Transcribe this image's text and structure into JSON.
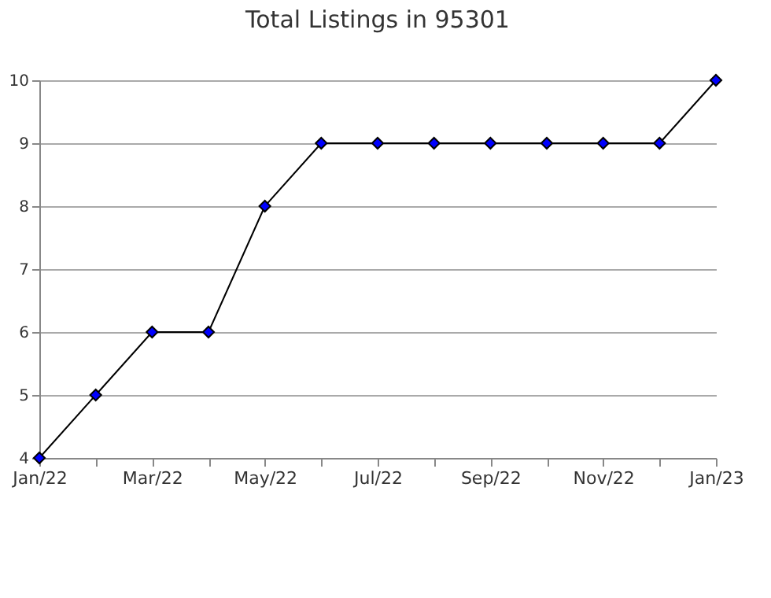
{
  "chart_data": {
    "type": "line",
    "title": "Total Listings in 95301",
    "categories": [
      "Jan/22",
      null,
      "Mar/22",
      null,
      "May/22",
      null,
      "Jul/22",
      null,
      "Sep/22",
      null,
      "Nov/22",
      null,
      "Jan/23"
    ],
    "series": [
      {
        "color": "#0000ff",
        "values": [
          4,
          5,
          6,
          6,
          8,
          9,
          9,
          9,
          9,
          9,
          9,
          9,
          10
        ]
      }
    ],
    "ylim": [
      4,
      10
    ],
    "yticks": [
      4,
      5,
      6,
      7,
      8,
      9,
      10
    ],
    "grid": "y",
    "marker": "diamond",
    "line_style": "solid"
  }
}
